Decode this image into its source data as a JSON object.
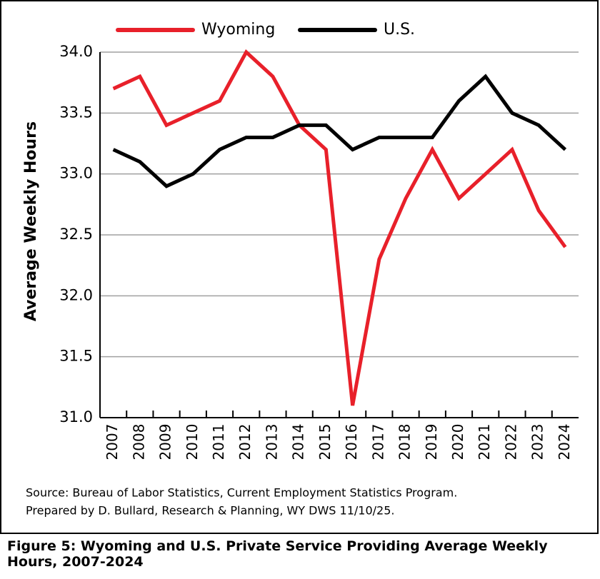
{
  "chart_data": {
    "type": "line",
    "y_label": "Average Weekly Hours",
    "categories": [
      "2007",
      "2008",
      "2009",
      "2010",
      "2011",
      "2012",
      "2013",
      "2014",
      "2015",
      "2016",
      "2017",
      "2018",
      "2019",
      "2020",
      "2021",
      "2022",
      "2023",
      "2024"
    ],
    "series": [
      {
        "name": "Wyoming",
        "color": "#e8202a",
        "values": [
          33.7,
          33.8,
          33.4,
          33.5,
          33.6,
          34.0,
          33.8,
          33.4,
          33.2,
          31.1,
          32.3,
          32.8,
          33.2,
          32.8,
          33.0,
          33.2,
          32.7,
          32.4
        ]
      },
      {
        "name": "U.S.",
        "color": "#000000",
        "values": [
          33.2,
          33.1,
          32.9,
          33.0,
          33.2,
          33.3,
          33.3,
          33.4,
          33.4,
          33.2,
          33.3,
          33.3,
          33.3,
          33.6,
          33.8,
          33.5,
          33.4,
          33.2
        ]
      }
    ],
    "ylim": [
      31,
      34
    ],
    "yticks": [
      {
        "value": 31,
        "label": "31.0"
      },
      31.5,
      {
        "value": 32,
        "label": "32.0"
      },
      32.5,
      {
        "value": 33,
        "label": "33.0"
      },
      33.5,
      {
        "value": 34,
        "label": "34.0"
      }
    ],
    "grid": true,
    "legend": "top",
    "source": [
      "Source: Bureau of Labor Statistics, Current Employment Statistics Program.",
      "Prepared by D. Bullard, Research & Planning, WY DWS 11/10/25."
    ],
    "caption": "Figure 5: Wyoming and U.S. Private Service Providing Average Weekly Hours, 2007-2024"
  }
}
